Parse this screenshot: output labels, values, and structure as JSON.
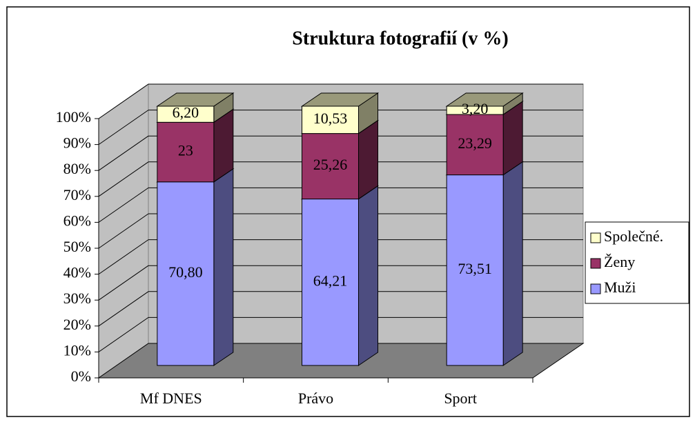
{
  "chart_data": {
    "type": "bar3d_stacked",
    "title": "Struktura fotografií (v %)",
    "categories": [
      "Mf DNES",
      "Právo",
      "Sport"
    ],
    "series": [
      {
        "name": "Muži",
        "color": "#9999ff",
        "values": [
          70.8,
          64.21,
          73.51
        ],
        "value_labels": [
          "70,80",
          "64,21",
          "73,51"
        ]
      },
      {
        "name": "Ženy",
        "color": "#993366",
        "values": [
          23,
          25.26,
          23.29
        ],
        "value_labels": [
          "23",
          "25,26",
          "23,29"
        ]
      },
      {
        "name": "Společné.",
        "color": "#ffffcc",
        "values": [
          6.2,
          10.53,
          3.2
        ],
        "value_labels": [
          "6,20",
          "10,53",
          "3,20"
        ]
      }
    ],
    "ylim": [
      0,
      100
    ],
    "yticks": [
      {
        "value": 0,
        "label": "0%"
      },
      {
        "value": 10,
        "label": "10%"
      },
      {
        "value": 20,
        "label": "20%"
      },
      {
        "value": 30,
        "label": "30%"
      },
      {
        "value": 40,
        "label": "40%"
      },
      {
        "value": 50,
        "label": "50%"
      },
      {
        "value": 60,
        "label": "60%"
      },
      {
        "value": 70,
        "label": "70%"
      },
      {
        "value": 80,
        "label": "80%"
      },
      {
        "value": 90,
        "label": "90%"
      },
      {
        "value": 100,
        "label": "100%"
      }
    ],
    "grid": true,
    "legend": "right"
  }
}
